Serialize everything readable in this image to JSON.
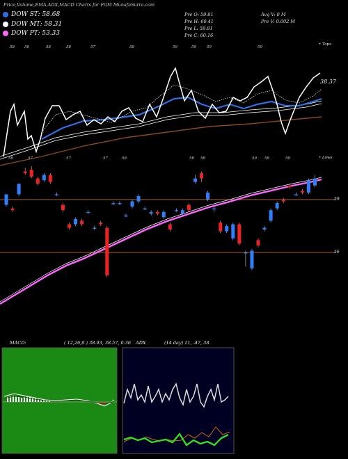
{
  "header": {
    "title": "Price,Volume,EMA,ADX,MACD Charts for FGM MunafaSutra.com",
    "legend": [
      {
        "label": "DOW ST: 58.68",
        "color": "#2f6fe0"
      },
      {
        "label": "DOW MT: 58.31",
        "color": "#ffffff"
      },
      {
        "label": "DOW PT: 53.33",
        "color": "#ff66ff"
      }
    ],
    "ohlc": {
      "open": "Pre  O: 59.81",
      "high": "Pre  H: 60.41",
      "low": "Pre  L: 59.81",
      "close": "Pre  C: 60.16"
    },
    "volume": {
      "avg": "Avg V: 0  M",
      "prev": "Pre  V: 0.002  M"
    }
  },
  "upper_chart": {
    "tops_label": "• Tops",
    "lows_label": "• Lows",
    "last_value_label": "38.37",
    "top_markers": [
      "58",
      "58",
      "58",
      "58",
      "57",
      "58",
      "59",
      "59",
      "59",
      "59"
    ],
    "low_markers": [
      "58",
      "57",
      "57",
      "57",
      "58",
      "58",
      "58",
      "59",
      "58",
      "58"
    ]
  },
  "price_chart": {
    "level_labels": [
      "59",
      "56"
    ]
  },
  "macd_panel": {
    "label": "MACD:",
    "values": "( 12,26,9 ) 38.93, 38.57, 0.36"
  },
  "adx_panel": {
    "label": "ADX",
    "values": "(14 day) 11, -47, 38"
  },
  "chart_data": {
    "type": "candlestick",
    "ohlc": [
      [
        58.7,
        59.3,
        58.6,
        59.0
      ],
      [
        58.5,
        58.4,
        58.6,
        58.3
      ],
      [
        59.3,
        59.9,
        59.2,
        59.8
      ],
      [
        60.6,
        60.5,
        60.8,
        60.4
      ],
      [
        60.7,
        60.3,
        60.9,
        60.2
      ],
      [
        60.2,
        59.9,
        60.3,
        59.8
      ],
      [
        60.1,
        60.4,
        60.0,
        60.5
      ],
      [
        60.4,
        60.0,
        60.5,
        59.9
      ],
      [
        59.3,
        59.3,
        59.4,
        59.2
      ],
      [
        58.7,
        58.4,
        58.8,
        58.3
      ],
      [
        57.6,
        57.4,
        57.7,
        57.3
      ],
      [
        57.6,
        57.9,
        57.5,
        58.0
      ],
      [
        57.8,
        57.6,
        57.9,
        57.5
      ],
      [
        58.3,
        58.3,
        58.4,
        58.2
      ],
      [
        57.4,
        57.4,
        57.5,
        57.3
      ],
      [
        57.7,
        57.6,
        57.8,
        57.5
      ],
      [
        57.4,
        54.7,
        57.5,
        54.6
      ],
      [
        58.8,
        58.8,
        58.9,
        58.7
      ],
      [
        58.8,
        58.8,
        58.9,
        58.7
      ],
      [
        58.1,
        58.1,
        58.2,
        58.0
      ],
      [
        58.6,
        58.9,
        58.5,
        59.0
      ],
      [
        58.9,
        59.2,
        58.8,
        59.3
      ],
      [
        58.5,
        58.5,
        58.6,
        58.4
      ],
      [
        58.2,
        58.3,
        58.1,
        58.4
      ],
      [
        58.3,
        58.2,
        58.4,
        58.1
      ],
      [
        58.0,
        58.3,
        57.9,
        58.4
      ],
      [
        57.6,
        57.3,
        57.7,
        57.2
      ],
      [
        58.4,
        58.4,
        58.5,
        58.3
      ],
      [
        58.2,
        58.4,
        58.1,
        58.5
      ],
      [
        58.7,
        58.4,
        58.8,
        58.3
      ],
      [
        60.0,
        60.2,
        59.9,
        60.4
      ],
      [
        60.5,
        60.2,
        60.6,
        60.0
      ],
      [
        59.0,
        59.4,
        58.9,
        59.5
      ],
      [
        58.5,
        58.5,
        58.6,
        58.3
      ],
      [
        57.7,
        57.2,
        57.8,
        57.1
      ],
      [
        57.2,
        57.5,
        57.1,
        57.6
      ],
      [
        56.8,
        57.6,
        56.7,
        57.7
      ],
      [
        57.6,
        56.5,
        57.7,
        56.4
      ],
      [
        56.0,
        56.0,
        56.1,
        55.2
      ],
      [
        55.1,
        56.1,
        55.0,
        56.2
      ],
      [
        56.7,
        56.4,
        56.8,
        56.3
      ],
      [
        57.3,
        57.4,
        57.2,
        57.5
      ],
      [
        57.8,
        58.4,
        57.7,
        58.5
      ],
      [
        58.5,
        58.8,
        58.4,
        58.9
      ],
      [
        59.0,
        58.9,
        59.1,
        58.8
      ],
      [
        59.8,
        59.7,
        59.9,
        59.6
      ],
      [
        59.3,
        59.3,
        59.4,
        59.2
      ],
      [
        59.5,
        59.4,
        59.6,
        59.3
      ],
      [
        59.4,
        60.1,
        59.3,
        60.2
      ],
      [
        59.8,
        60.2,
        59.7,
        60.4
      ]
    ],
    "level_values": [
      59,
      56
    ]
  }
}
